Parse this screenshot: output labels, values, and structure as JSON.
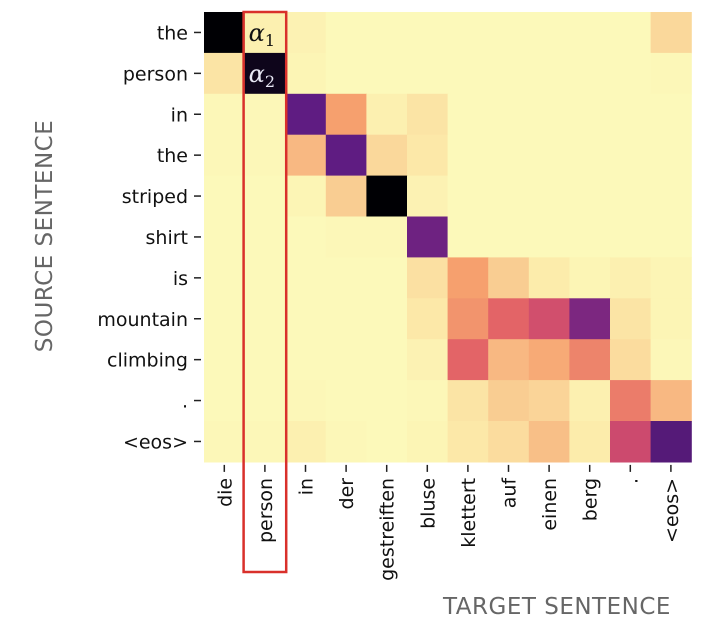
{
  "chart_data": {
    "type": "heatmap",
    "ylabel": "SOURCE SENTENCE",
    "xlabel": "TARGET SENTENCE",
    "source_tokens": [
      "the",
      "person",
      "in",
      "the",
      "striped",
      "shirt",
      "is",
      "mountain",
      "climbing",
      ".",
      "<eos>"
    ],
    "target_tokens": [
      "die",
      "person",
      "in",
      "der",
      "gestreiften",
      "bluse",
      "klettert",
      "auf",
      "einen",
      "berg",
      ".",
      "<eos>"
    ],
    "colormap": "magma_r",
    "value_range": [
      0,
      1
    ],
    "values": [
      [
        1.0,
        0.06,
        0.05,
        0.02,
        0.02,
        0.02,
        0.02,
        0.02,
        0.02,
        0.02,
        0.02,
        0.18
      ],
      [
        0.12,
        0.97,
        0.04,
        0.02,
        0.02,
        0.02,
        0.02,
        0.02,
        0.02,
        0.02,
        0.02,
        0.03
      ],
      [
        0.03,
        0.03,
        0.8,
        0.35,
        0.06,
        0.12,
        0.02,
        0.02,
        0.02,
        0.02,
        0.02,
        0.02
      ],
      [
        0.03,
        0.03,
        0.28,
        0.8,
        0.18,
        0.1,
        0.02,
        0.02,
        0.02,
        0.02,
        0.02,
        0.02
      ],
      [
        0.02,
        0.02,
        0.04,
        0.22,
        1.0,
        0.05,
        0.02,
        0.02,
        0.02,
        0.02,
        0.02,
        0.02
      ],
      [
        0.02,
        0.02,
        0.02,
        0.03,
        0.03,
        0.78,
        0.02,
        0.02,
        0.02,
        0.02,
        0.02,
        0.02
      ],
      [
        0.02,
        0.02,
        0.02,
        0.02,
        0.02,
        0.14,
        0.35,
        0.22,
        0.08,
        0.04,
        0.06,
        0.04
      ],
      [
        0.02,
        0.02,
        0.02,
        0.02,
        0.02,
        0.1,
        0.38,
        0.5,
        0.58,
        0.76,
        0.12,
        0.04
      ],
      [
        0.02,
        0.02,
        0.02,
        0.02,
        0.02,
        0.05,
        0.5,
        0.28,
        0.32,
        0.42,
        0.16,
        0.03
      ],
      [
        0.02,
        0.02,
        0.03,
        0.02,
        0.02,
        0.03,
        0.12,
        0.22,
        0.2,
        0.06,
        0.44,
        0.28
      ],
      [
        0.03,
        0.03,
        0.06,
        0.03,
        0.02,
        0.04,
        0.1,
        0.16,
        0.26,
        0.08,
        0.6,
        0.82
      ]
    ],
    "highlight_column": 1,
    "highlight_color": "#d9302b",
    "annotations": [
      {
        "row": 0,
        "col": 1,
        "symbol": "α",
        "subscript": "1"
      },
      {
        "row": 1,
        "col": 1,
        "symbol": "α",
        "subscript": "2"
      }
    ]
  }
}
